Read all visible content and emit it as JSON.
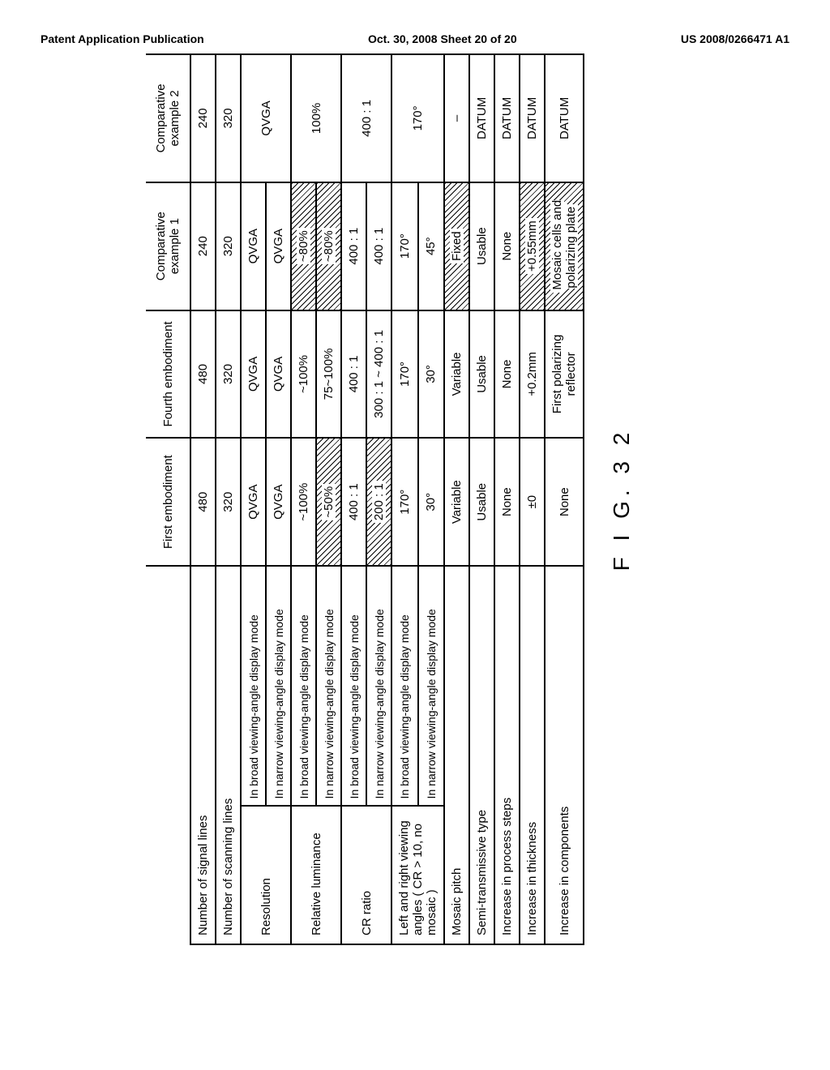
{
  "header": {
    "left": "Patent Application Publication",
    "center": "Oct. 30, 2008  Sheet 20 of 20",
    "right": "US 2008/0266471 A1"
  },
  "figure_label": "F I G. 3 2",
  "table": {
    "column_headers": [
      "First embodiment",
      "Fourth embodiment",
      "Comparative example 1",
      "Comparative example 2"
    ],
    "rows": [
      {
        "label": "Number of signal lines",
        "colspan": 2,
        "cells": [
          {
            "text": "480"
          },
          {
            "text": "480"
          },
          {
            "text": "240"
          },
          {
            "text": "240"
          }
        ]
      },
      {
        "label": "Number of scanning lines",
        "colspan": 2,
        "cells": [
          {
            "text": "320"
          },
          {
            "text": "320"
          },
          {
            "text": "320"
          },
          {
            "text": "320"
          }
        ]
      },
      {
        "group_label": "Resolution",
        "sub_rows": [
          {
            "sub": "In broad viewing-angle display mode",
            "cells": [
              {
                "text": "QVGA"
              },
              {
                "text": "QVGA"
              },
              {
                "text": "QVGA"
              },
              {
                "text": "QVGA",
                "rowspan": 2
              }
            ]
          },
          {
            "sub": "In narrow viewing-angle display mode",
            "cells": [
              {
                "text": "QVGA"
              },
              {
                "text": "QVGA"
              },
              {
                "text": "QVGA"
              }
            ]
          }
        ]
      },
      {
        "group_label": "Relative luminance",
        "sub_rows": [
          {
            "sub": "In broad viewing-angle display mode",
            "cells": [
              {
                "text": "~100%"
              },
              {
                "text": "~100%"
              },
              {
                "text": "~80%",
                "hatched": true
              },
              {
                "text": "100%",
                "rowspan": 2
              }
            ]
          },
          {
            "sub": "In narrow viewing-angle display mode",
            "cells": [
              {
                "text": "~50%",
                "hatched": true
              },
              {
                "text": "75~100%"
              },
              {
                "text": "~80%",
                "hatched": true
              }
            ]
          }
        ]
      },
      {
        "group_label": "CR ratio",
        "sub_rows": [
          {
            "sub": "In broad viewing-angle display mode",
            "cells": [
              {
                "text": "400 : 1"
              },
              {
                "text": "400 : 1"
              },
              {
                "text": "400 : 1"
              },
              {
                "text": "400 : 1",
                "rowspan": 2
              }
            ]
          },
          {
            "sub": "In narrow viewing-angle display mode",
            "cells": [
              {
                "text": "200 : 1",
                "hatched": true
              },
              {
                "text": "300 : 1 ~ 400 : 1"
              },
              {
                "text": "400 : 1"
              }
            ]
          }
        ]
      },
      {
        "group_label": "Left and right viewing angles ( CR > 10, no mosaic )",
        "sub_rows": [
          {
            "sub": "In broad viewing-angle display mode",
            "cells": [
              {
                "text": "170°"
              },
              {
                "text": "170°"
              },
              {
                "text": "170°"
              },
              {
                "text": "170°",
                "rowspan": 2
              }
            ]
          },
          {
            "sub": "In narrow viewing-angle display mode",
            "cells": [
              {
                "text": "30°"
              },
              {
                "text": "30°"
              },
              {
                "text": "45°"
              }
            ]
          }
        ]
      },
      {
        "label": "Mosaic pitch",
        "colspan": 2,
        "cells": [
          {
            "text": "Variable"
          },
          {
            "text": "Variable"
          },
          {
            "text": "Fixed",
            "hatched": true
          },
          {
            "text": "–"
          }
        ]
      },
      {
        "label": "Semi-transmissive type",
        "colspan": 2,
        "cells": [
          {
            "text": "Usable"
          },
          {
            "text": "Usable"
          },
          {
            "text": "Usable"
          },
          {
            "text": "DATUM"
          }
        ]
      },
      {
        "label": "Increase in process steps",
        "colspan": 2,
        "cells": [
          {
            "text": "None"
          },
          {
            "text": "None"
          },
          {
            "text": "None"
          },
          {
            "text": "DATUM"
          }
        ]
      },
      {
        "label": "Increase in thickness",
        "colspan": 2,
        "cells": [
          {
            "text": "±0"
          },
          {
            "text": "+0.2mm"
          },
          {
            "text": "+0.55mm",
            "hatched": true
          },
          {
            "text": "DATUM"
          }
        ]
      },
      {
        "label": "Increase in components",
        "colspan": 2,
        "cells": [
          {
            "text": "None"
          },
          {
            "text": "First polarizing reflector"
          },
          {
            "text": "Mosaic cells and polarizing plate",
            "hatched": true
          },
          {
            "text": "DATUM"
          }
        ]
      }
    ]
  }
}
